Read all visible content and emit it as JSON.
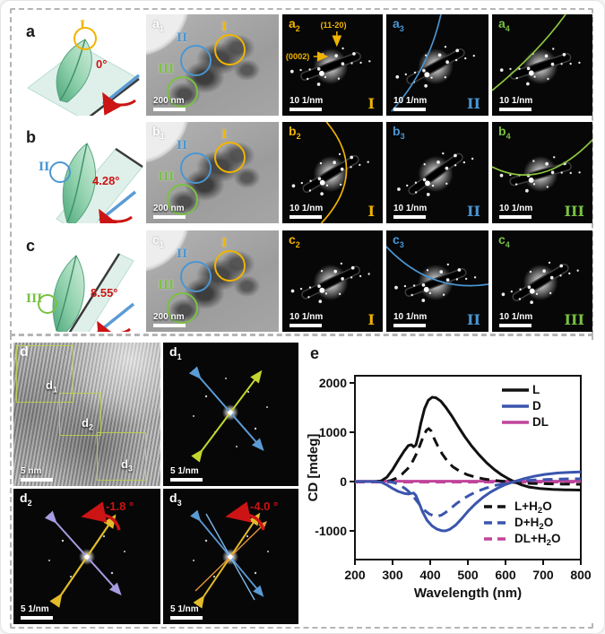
{
  "colors": {
    "accent_yellow": "#f0b400",
    "accent_blue": "#4a96d2",
    "accent_green": "#7ac143",
    "accent_red": "#cc1414",
    "line_black": "#111111",
    "line_blue": "#3a55ad",
    "line_magenta": "#c0449c",
    "schematic_green": "#6fbf92",
    "plate_teal": "#dff0ea"
  },
  "top": {
    "rows": [
      {
        "letter": "a",
        "angle": "0°",
        "marker": "I",
        "marker_color": "yellow",
        "tem": {
          "label": {
            "main": "a",
            "sub": "1"
          },
          "scalebar": "200 nm",
          "circles": [
            {
              "num": "I",
              "color_key": "yellow"
            },
            {
              "num": "II",
              "color_key": "blue"
            },
            {
              "num": "III",
              "color_key": "green"
            }
          ]
        },
        "diff": [
          {
            "label": {
              "main": "a",
              "sub": "2"
            },
            "scalebar": "10 1/nm",
            "corner": "I",
            "corner_color": "yellow",
            "annotations": [
              {
                "text": "(0002)"
              },
              {
                "text": "(11-20)"
              }
            ]
          },
          {
            "label": {
              "main": "a",
              "sub": "3"
            },
            "scalebar": "10 1/nm",
            "corner": "II",
            "corner_color": "blue"
          },
          {
            "label": {
              "main": "a",
              "sub": "4"
            },
            "scalebar": "10 1/nm",
            "corner": "",
            "corner_color": "green"
          }
        ]
      },
      {
        "letter": "b",
        "angle": "4.28°",
        "marker": "II",
        "marker_color": "blue",
        "tem": {
          "label": {
            "main": "b",
            "sub": "1"
          },
          "scalebar": "200 nm",
          "circles": [
            {
              "num": "I",
              "color_key": "yellow"
            },
            {
              "num": "II",
              "color_key": "blue"
            },
            {
              "num": "III",
              "color_key": "green"
            }
          ]
        },
        "diff": [
          {
            "label": {
              "main": "b",
              "sub": "2"
            },
            "scalebar": "10 1/nm",
            "corner": "I",
            "corner_color": "yellow"
          },
          {
            "label": {
              "main": "b",
              "sub": "3"
            },
            "scalebar": "10 1/nm",
            "corner": "II",
            "corner_color": "blue"
          },
          {
            "label": {
              "main": "b",
              "sub": "4"
            },
            "scalebar": "10 1/nm",
            "corner": "III",
            "corner_color": "green"
          }
        ]
      },
      {
        "letter": "c",
        "angle": "8.55°",
        "marker": "III",
        "marker_color": "green",
        "tem": {
          "label": {
            "main": "c",
            "sub": "1"
          },
          "scalebar": "200 nm",
          "circles": [
            {
              "num": "I",
              "color_key": "yellow"
            },
            {
              "num": "II",
              "color_key": "blue"
            },
            {
              "num": "III",
              "color_key": "green"
            }
          ]
        },
        "diff": [
          {
            "label": {
              "main": "c",
              "sub": "2"
            },
            "scalebar": "10 1/nm",
            "corner": "I",
            "corner_color": "yellow"
          },
          {
            "label": {
              "main": "c",
              "sub": "3"
            },
            "scalebar": "10 1/nm",
            "corner": "II",
            "corner_color": "blue"
          },
          {
            "label": {
              "main": "c",
              "sub": "4"
            },
            "scalebar": "10 1/nm",
            "corner": "III",
            "corner_color": "green"
          }
        ]
      }
    ]
  },
  "bottom": {
    "d": {
      "label": "d",
      "scalebar": "5 nm",
      "boxes": [
        {
          "main": "d",
          "sub": "1"
        },
        {
          "main": "d",
          "sub": "2"
        },
        {
          "main": "d",
          "sub": "3"
        }
      ]
    },
    "d1": {
      "label": {
        "main": "d",
        "sub": "1"
      },
      "scalebar": "5 1/nm"
    },
    "d2": {
      "label": {
        "main": "d",
        "sub": "2"
      },
      "angle": "-1.8 °",
      "scalebar": "5 1/nm"
    },
    "d3": {
      "label": {
        "main": "d",
        "sub": "3"
      },
      "angle": "-4.0 °",
      "scalebar": "5 1/nm"
    },
    "e_label": "e"
  },
  "chart_data": {
    "type": "line",
    "title": "",
    "xlabel": "Wavelength (nm)",
    "ylabel": "CD [mdeg]",
    "xlim": [
      200,
      800
    ],
    "ylim": [
      -1580,
      2150
    ],
    "xticks": [
      200,
      300,
      400,
      500,
      600,
      700,
      800
    ],
    "yticks": [
      2000,
      1000,
      0,
      -1000
    ],
    "grid": false,
    "legend_solid_position": "top-right",
    "legend_dashed_position": "bottom-right",
    "series": [
      {
        "name": "L",
        "color": "#111111",
        "dash": false,
        "points": [
          [
            200,
            0
          ],
          [
            255,
            0
          ],
          [
            270,
            15
          ],
          [
            285,
            90
          ],
          [
            300,
            240
          ],
          [
            315,
            430
          ],
          [
            330,
            610
          ],
          [
            342,
            730
          ],
          [
            350,
            745
          ],
          [
            356,
            705
          ],
          [
            362,
            740
          ],
          [
            368,
            920
          ],
          [
            375,
            1180
          ],
          [
            385,
            1480
          ],
          [
            395,
            1650
          ],
          [
            405,
            1710
          ],
          [
            415,
            1700
          ],
          [
            428,
            1630
          ],
          [
            442,
            1500
          ],
          [
            458,
            1320
          ],
          [
            475,
            1110
          ],
          [
            492,
            910
          ],
          [
            510,
            720
          ],
          [
            530,
            540
          ],
          [
            550,
            380
          ],
          [
            570,
            245
          ],
          [
            590,
            135
          ],
          [
            608,
            55
          ],
          [
            622,
            0
          ],
          [
            640,
            -60
          ],
          [
            662,
            -110
          ],
          [
            690,
            -140
          ],
          [
            725,
            -160
          ],
          [
            760,
            -168
          ],
          [
            800,
            -172
          ]
        ]
      },
      {
        "name": "D",
        "color": "#3a55ad",
        "dash": false,
        "points": [
          [
            200,
            0
          ],
          [
            255,
            0
          ],
          [
            270,
            -12
          ],
          [
            285,
            -70
          ],
          [
            300,
            -140
          ],
          [
            315,
            -200
          ],
          [
            330,
            -238
          ],
          [
            342,
            -252
          ],
          [
            350,
            -240
          ],
          [
            356,
            -232
          ],
          [
            362,
            -280
          ],
          [
            370,
            -430
          ],
          [
            380,
            -620
          ],
          [
            392,
            -790
          ],
          [
            405,
            -900
          ],
          [
            418,
            -965
          ],
          [
            430,
            -995
          ],
          [
            440,
            -1000
          ],
          [
            452,
            -970
          ],
          [
            468,
            -880
          ],
          [
            485,
            -740
          ],
          [
            502,
            -590
          ],
          [
            520,
            -450
          ],
          [
            540,
            -320
          ],
          [
            560,
            -215
          ],
          [
            580,
            -130
          ],
          [
            600,
            -60
          ],
          [
            615,
            -20
          ],
          [
            628,
            10
          ],
          [
            650,
            60
          ],
          [
            675,
            105
          ],
          [
            705,
            145
          ],
          [
            740,
            175
          ],
          [
            770,
            188
          ],
          [
            800,
            196
          ]
        ]
      },
      {
        "name": "DL",
        "color": "#c0449c",
        "dash": false,
        "points": [
          [
            200,
            8
          ],
          [
            800,
            8
          ]
        ]
      },
      {
        "name": "L+H2O",
        "legend": {
          "pre": "L+H",
          "sub": "2",
          "post": "O"
        },
        "color": "#111111",
        "dash": true,
        "points": [
          [
            200,
            0
          ],
          [
            280,
            0
          ],
          [
            295,
            20
          ],
          [
            310,
            70
          ],
          [
            325,
            150
          ],
          [
            340,
            260
          ],
          [
            352,
            390
          ],
          [
            362,
            540
          ],
          [
            372,
            720
          ],
          [
            382,
            920
          ],
          [
            390,
            1040
          ],
          [
            396,
            1075
          ],
          [
            402,
            1030
          ],
          [
            410,
            880
          ],
          [
            420,
            720
          ],
          [
            432,
            560
          ],
          [
            445,
            420
          ],
          [
            460,
            300
          ],
          [
            478,
            210
          ],
          [
            498,
            140
          ],
          [
            520,
            90
          ],
          [
            545,
            50
          ],
          [
            575,
            20
          ],
          [
            605,
            -5
          ],
          [
            635,
            -25
          ],
          [
            670,
            -38
          ],
          [
            710,
            -46
          ],
          [
            755,
            -52
          ],
          [
            800,
            -55
          ]
        ]
      },
      {
        "name": "D+H2O",
        "legend": {
          "pre": "D+H",
          "sub": "2",
          "post": "O"
        },
        "color": "#3a55ad",
        "dash": true,
        "points": [
          [
            200,
            0
          ],
          [
            290,
            0
          ],
          [
            305,
            -25
          ],
          [
            320,
            -75
          ],
          [
            335,
            -150
          ],
          [
            350,
            -250
          ],
          [
            362,
            -370
          ],
          [
            374,
            -490
          ],
          [
            386,
            -590
          ],
          [
            398,
            -660
          ],
          [
            410,
            -695
          ],
          [
            420,
            -700
          ],
          [
            430,
            -680
          ],
          [
            442,
            -620
          ],
          [
            455,
            -540
          ],
          [
            470,
            -445
          ],
          [
            487,
            -355
          ],
          [
            505,
            -272
          ],
          [
            525,
            -198
          ],
          [
            548,
            -132
          ],
          [
            572,
            -80
          ],
          [
            598,
            -38
          ],
          [
            620,
            -8
          ],
          [
            645,
            15
          ],
          [
            675,
            32
          ],
          [
            712,
            44
          ],
          [
            755,
            52
          ],
          [
            800,
            56
          ]
        ]
      },
      {
        "name": "DL+H2O",
        "legend": {
          "pre": "DL+H",
          "sub": "2",
          "post": "O"
        },
        "color": "#c0449c",
        "dash": true,
        "points": [
          [
            200,
            -10
          ],
          [
            800,
            -10
          ]
        ]
      }
    ]
  }
}
